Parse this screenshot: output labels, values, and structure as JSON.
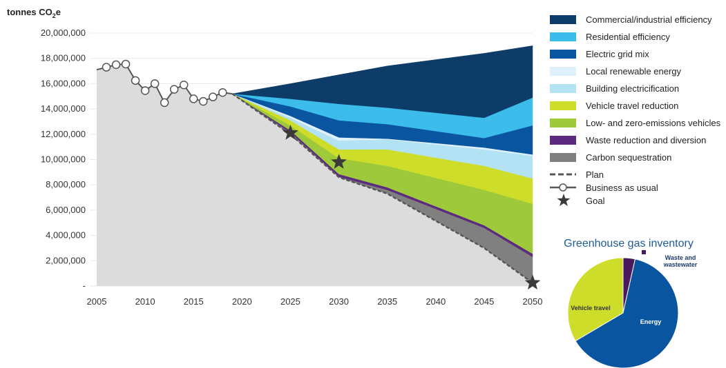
{
  "chart_data": {
    "type": "area",
    "ylabel_main": "tonnes CO",
    "ylabel_sub": "2",
    "ylabel_tail": "e",
    "ylim": [
      0,
      20000000
    ],
    "xlim": [
      2005,
      2050
    ],
    "y_ticks": [
      {
        "value": 0,
        "label": "-"
      },
      {
        "value": 2000000,
        "label": "2,000,000"
      },
      {
        "value": 4000000,
        "label": "4,000,000"
      },
      {
        "value": 6000000,
        "label": "6,000,000"
      },
      {
        "value": 8000000,
        "label": "8,000,000"
      },
      {
        "value": 10000000,
        "label": "10,000,000"
      },
      {
        "value": 12000000,
        "label": "12,000,000"
      },
      {
        "value": 14000000,
        "label": "14,000,000"
      },
      {
        "value": 16000000,
        "label": "16,000,000"
      },
      {
        "value": 18000000,
        "label": "18,000,000"
      },
      {
        "value": 20000000,
        "label": "20,000,000"
      }
    ],
    "x_ticks": [
      {
        "value": 2005,
        "label": "2005"
      },
      {
        "value": 2010,
        "label": "2010"
      },
      {
        "value": 2015,
        "label": "2015"
      },
      {
        "value": 2020,
        "label": "2020"
      },
      {
        "value": 2025,
        "label": "2025"
      },
      {
        "value": 2030,
        "label": "2030"
      },
      {
        "value": 2035,
        "label": "2035"
      },
      {
        "value": 2040,
        "label": "2040"
      },
      {
        "value": 2045,
        "label": "2045"
      },
      {
        "value": 2050,
        "label": "2050"
      }
    ],
    "historical": {
      "x": [
        2005,
        2006,
        2007,
        2008,
        2009,
        2010,
        2011,
        2012,
        2013,
        2014,
        2015,
        2016,
        2017,
        2018,
        2019
      ],
      "y": [
        17100000,
        17300000,
        17500000,
        17550000,
        16250000,
        15450000,
        16000000,
        14500000,
        15550000,
        15900000,
        14800000,
        14600000,
        14950000,
        15300000,
        15200000
      ]
    },
    "projection_x": [
      2019,
      2025,
      2030,
      2035,
      2045,
      2050
    ],
    "business_as_usual": [
      15200000,
      16000000,
      16700000,
      17400000,
      18400000,
      19000000
    ],
    "plan": [
      15200000,
      12000000,
      8600000,
      7300000,
      3000000,
      250000
    ],
    "series": [
      {
        "name": "Carbon sequestration",
        "color": "#808080",
        "top": [
          15200000,
          12150000,
          8650000,
          7600000,
          4600000,
          2300000
        ]
      },
      {
        "name": "Waste reduction and diversion",
        "color": "#5c2a7e",
        "top": [
          15200000,
          12300000,
          8850000,
          7800000,
          4800000,
          2550000
        ]
      },
      {
        "name": "Low- and zero-emissions vehicles",
        "color": "#9dc93b",
        "top": [
          15200000,
          12700000,
          10100000,
          9500000,
          7600000,
          6500000
        ]
      },
      {
        "name": "Vehicle travel reduction",
        "color": "#cedc2a",
        "top": [
          15200000,
          13100000,
          10800000,
          10800000,
          9500000,
          8500000
        ]
      },
      {
        "name": "Building electricification",
        "color": "#b4e2f5",
        "top": [
          15200000,
          13300000,
          11500000,
          11600000,
          10800000,
          10300000
        ]
      },
      {
        "name": "Local renewable energy",
        "color": "#def1fb",
        "top": [
          15200000,
          13450000,
          11750000,
          11650000,
          10950000,
          10400000
        ]
      },
      {
        "name": "Electric grid mix",
        "color": "#0a55a0",
        "top": [
          15200000,
          14200000,
          13100000,
          12800000,
          11700000,
          12700000
        ]
      },
      {
        "name": "Residential efficiency",
        "color": "#3bbceb",
        "top": [
          15200000,
          14800000,
          14400000,
          14100000,
          13300000,
          14900000
        ]
      },
      {
        "name": "Commercial/industrial efficiency",
        "color": "#0d3c68",
        "top": [
          15200000,
          16000000,
          16700000,
          17400000,
          18400000,
          19000000
        ]
      }
    ],
    "goals": [
      {
        "x": 2025,
        "y": 12100000
      },
      {
        "x": 2030,
        "y": 9800000
      },
      {
        "x": 2050,
        "y": 250000
      }
    ],
    "base_fill_color": "#dcdcdc",
    "legend": [
      {
        "label": "Commercial/industrial efficiency",
        "kind": "swatch",
        "color": "#0d3c68"
      },
      {
        "label": "Residential efficiency",
        "kind": "swatch",
        "color": "#3bbceb"
      },
      {
        "label": "Electric grid mix",
        "kind": "swatch",
        "color": "#0a55a0"
      },
      {
        "label": "Local renewable energy",
        "kind": "swatch",
        "color": "#def1fb"
      },
      {
        "label": "Building electricification",
        "kind": "swatch",
        "color": "#b4e2f5"
      },
      {
        "label": "Vehicle travel reduction",
        "kind": "swatch",
        "color": "#cedc2a"
      },
      {
        "label": "Low- and zero-emissions vehicles",
        "kind": "swatch",
        "color": "#9dc93b"
      },
      {
        "label": "Waste reduction and diversion",
        "kind": "swatch",
        "color": "#5c2a7e"
      },
      {
        "label": "Carbon sequestration",
        "kind": "swatch",
        "color": "#808080"
      },
      {
        "label": "Plan",
        "kind": "dash",
        "color": "#555555"
      },
      {
        "label": "Business as usual",
        "kind": "marker-line",
        "color": "#555555"
      },
      {
        "label": "Goal",
        "kind": "star",
        "color": "#3a3a3a"
      }
    ],
    "inset_pie": {
      "type": "pie",
      "title": "Greenhouse gas inventory",
      "slices": [
        {
          "label": "Energy",
          "value": 0.63,
          "color": "#0a55a0"
        },
        {
          "label": "Vehicle travel",
          "value": 0.335,
          "color": "#cedc2a"
        },
        {
          "label": "Waste and wastewater",
          "value": 0.035,
          "color": "#4a1a5e"
        }
      ]
    }
  }
}
